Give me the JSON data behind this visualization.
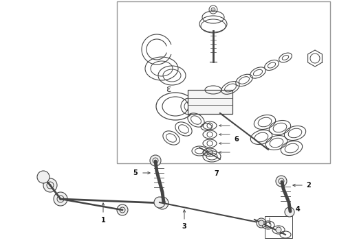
{
  "bg_color": "#ffffff",
  "line_color": "#444444",
  "box_border": "#999999",
  "label_color": "#111111",
  "fig_width": 4.9,
  "fig_height": 3.6,
  "dpi": 100
}
